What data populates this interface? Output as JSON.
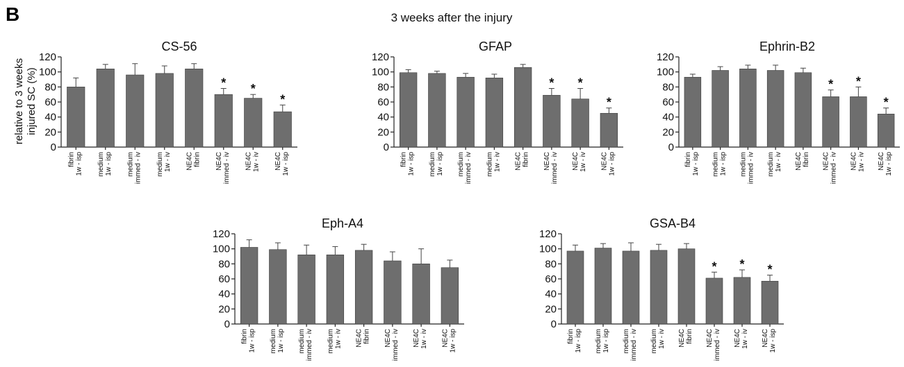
{
  "figure": {
    "panel_letter": "B",
    "title": "3 weeks after the injury",
    "ylabel_line1": "relative to 3 weeks",
    "ylabel_line2": "injured SC (%)"
  },
  "chart_data": [
    {
      "type": "bar",
      "title": "CS-56",
      "ylim": [
        0,
        120
      ],
      "yticks": [
        "0",
        "20",
        "40",
        "60",
        "80",
        "100",
        "120"
      ],
      "categories": [
        [
          "fibrin",
          "1w - isp"
        ],
        [
          "medium",
          "1w - isp"
        ],
        [
          "medium",
          "immed - iv"
        ],
        [
          "medium",
          "1w - iv"
        ],
        [
          "NE4C",
          "fibrin"
        ],
        [
          "NE4C",
          "immed - iv"
        ],
        [
          "NE4C",
          "1w - iv"
        ],
        [
          "NE4C",
          "1w - isp"
        ]
      ],
      "values": [
        80,
        104,
        96,
        98,
        104,
        70,
        65,
        47
      ],
      "errors": [
        12,
        6,
        15,
        10,
        7,
        8,
        5,
        9
      ],
      "significant": [
        "",
        "",
        "",
        "",
        "",
        "*",
        "*",
        "*"
      ]
    },
    {
      "type": "bar",
      "title": "GFAP",
      "ylim": [
        0,
        120
      ],
      "yticks": [
        "0",
        "20",
        "40",
        "60",
        "80",
        "100",
        "120"
      ],
      "categories": [
        [
          "fibrin",
          "1w - isp"
        ],
        [
          "medium",
          "1w - isp"
        ],
        [
          "medium",
          "immed - iv"
        ],
        [
          "medium",
          "1w - iv"
        ],
        [
          "NE4C",
          "fibrin"
        ],
        [
          "NE4C",
          "immed - iv"
        ],
        [
          "NE4C",
          "1w - iv"
        ],
        [
          "NE4C",
          "1w - isp"
        ]
      ],
      "values": [
        99,
        98,
        93,
        92,
        106,
        69,
        64,
        45
      ],
      "errors": [
        4,
        3,
        5,
        5,
        4,
        9,
        14,
        7
      ],
      "significant": [
        "",
        "",
        "",
        "",
        "",
        "*",
        "*",
        "*"
      ]
    },
    {
      "type": "bar",
      "title": "Ephrin-B2",
      "ylim": [
        0,
        120
      ],
      "yticks": [
        "0",
        "20",
        "40",
        "60",
        "80",
        "100",
        "120"
      ],
      "categories": [
        [
          "fibrin",
          "1w - isp"
        ],
        [
          "medium",
          "1w - isp"
        ],
        [
          "medium",
          "immed - iv"
        ],
        [
          "medium",
          "1w - iv"
        ],
        [
          "NE4C",
          "fibrin"
        ],
        [
          "NE4C",
          "immed - iv"
        ],
        [
          "NE4C",
          "1w - iv"
        ],
        [
          "NE4C",
          "1w - isp"
        ]
      ],
      "values": [
        93,
        102,
        104,
        102,
        99,
        67,
        67,
        44
      ],
      "errors": [
        4,
        5,
        5,
        7,
        6,
        9,
        13,
        8
      ],
      "significant": [
        "",
        "",
        "",
        "",
        "",
        "*",
        "*",
        "*"
      ]
    },
    {
      "type": "bar",
      "title": "Eph-A4",
      "ylim": [
        0,
        120
      ],
      "yticks": [
        "0",
        "20",
        "40",
        "60",
        "80",
        "100",
        "120"
      ],
      "categories": [
        [
          "fibrin",
          "1w - isp"
        ],
        [
          "medium",
          "1w - isp"
        ],
        [
          "medium",
          "immed - iv"
        ],
        [
          "medium",
          "1w - iv"
        ],
        [
          "NE4C",
          "fibrin"
        ],
        [
          "NE4C",
          "immed - iv"
        ],
        [
          "NE4C",
          "1w - iv"
        ],
        [
          "NE4C",
          "1w - isp"
        ]
      ],
      "values": [
        102,
        99,
        92,
        92,
        98,
        84,
        80,
        75
      ],
      "errors": [
        10,
        9,
        13,
        11,
        8,
        12,
        20,
        10
      ],
      "significant": [
        "",
        "",
        "",
        "",
        "",
        "",
        "",
        ""
      ]
    },
    {
      "type": "bar",
      "title": "GSA-B4",
      "ylim": [
        0,
        120
      ],
      "yticks": [
        "0",
        "20",
        "40",
        "60",
        "80",
        "100",
        "120"
      ],
      "categories": [
        [
          "fibrin",
          "1w - isp"
        ],
        [
          "medium",
          "1w - isp"
        ],
        [
          "medium",
          "immed - iv"
        ],
        [
          "medium",
          "1w - iv"
        ],
        [
          "NE4C",
          "fibrin"
        ],
        [
          "NE4C",
          "immed - iv"
        ],
        [
          "NE4C",
          "1w - iv"
        ],
        [
          "NE4C",
          "1w - isp"
        ]
      ],
      "values": [
        97,
        101,
        97,
        98,
        100,
        61,
        62,
        57
      ],
      "errors": [
        8,
        6,
        11,
        8,
        7,
        8,
        10,
        8
      ],
      "significant": [
        "",
        "",
        "",
        "",
        "",
        "*",
        "*",
        "*"
      ]
    }
  ]
}
